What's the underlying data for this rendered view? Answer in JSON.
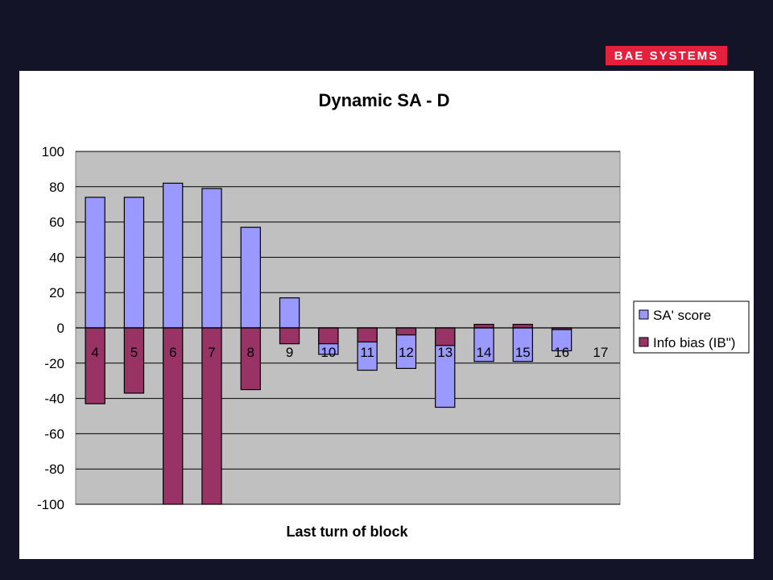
{
  "logo": {
    "text": "BAE SYSTEMS"
  },
  "colors": {
    "page_background": "#141428",
    "slide_background": "#ffffff",
    "plot_background": "#c0c0c0",
    "sa_score": "#9999ff",
    "info_bias": "#993366",
    "logo_red": "#e4203c"
  },
  "chart_data": {
    "type": "bar",
    "stacked": false,
    "overlap": true,
    "title": "Dynamic SA - D",
    "xlabel": "Last turn of block",
    "ylabel": "",
    "ylim": [
      -100,
      100
    ],
    "yticks": [
      100,
      80,
      60,
      40,
      20,
      0,
      -20,
      -40,
      -60,
      -80,
      -100
    ],
    "grid": true,
    "legend_position": "right",
    "categories": [
      "4",
      "5",
      "6",
      "7",
      "8",
      "9",
      "10",
      "11",
      "12",
      "13",
      "14",
      "15",
      "16",
      "17"
    ],
    "series": [
      {
        "name": "SA' score",
        "color": "#9999ff",
        "values": [
          74,
          74,
          82,
          79,
          57,
          17,
          -15,
          -24,
          -23,
          -45,
          -19,
          -19,
          -13,
          null
        ]
      },
      {
        "name": "Info bias (IB\")",
        "color": "#993366",
        "values": [
          -43,
          -37,
          -100,
          -100,
          -35,
          -9,
          -9,
          -8,
          -4,
          -10,
          2,
          2,
          -1,
          null
        ]
      }
    ]
  }
}
